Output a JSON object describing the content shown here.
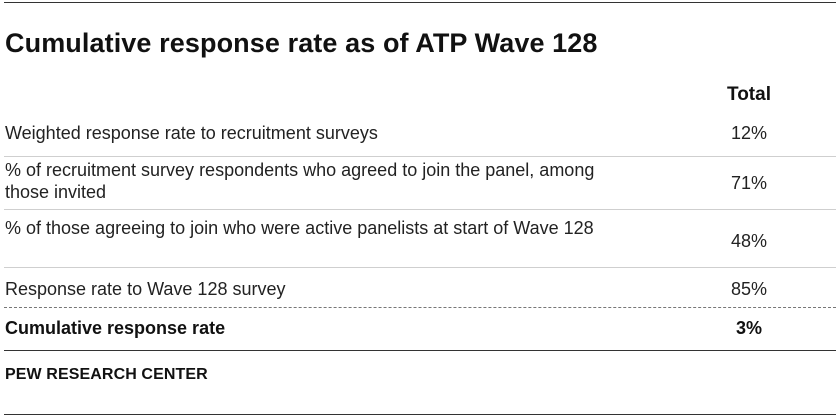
{
  "title": "Cumulative response rate as of ATP Wave 128",
  "table": {
    "column_header": "Total",
    "rows": [
      {
        "label": "Weighted response rate to recruitment surveys",
        "value": "12%"
      },
      {
        "label": "% of recruitment survey respondents who agreed to join the panel, among those invited",
        "value": "71%"
      },
      {
        "label": "% of those agreeing to join who were active panelists at start of Wave 128",
        "value": "48%"
      },
      {
        "label": "Response rate to Wave 128 survey",
        "value": "85%"
      }
    ],
    "summary": {
      "label": "Cumulative response rate",
      "value": "3%"
    }
  },
  "source": "PEW RESEARCH CENTER"
}
